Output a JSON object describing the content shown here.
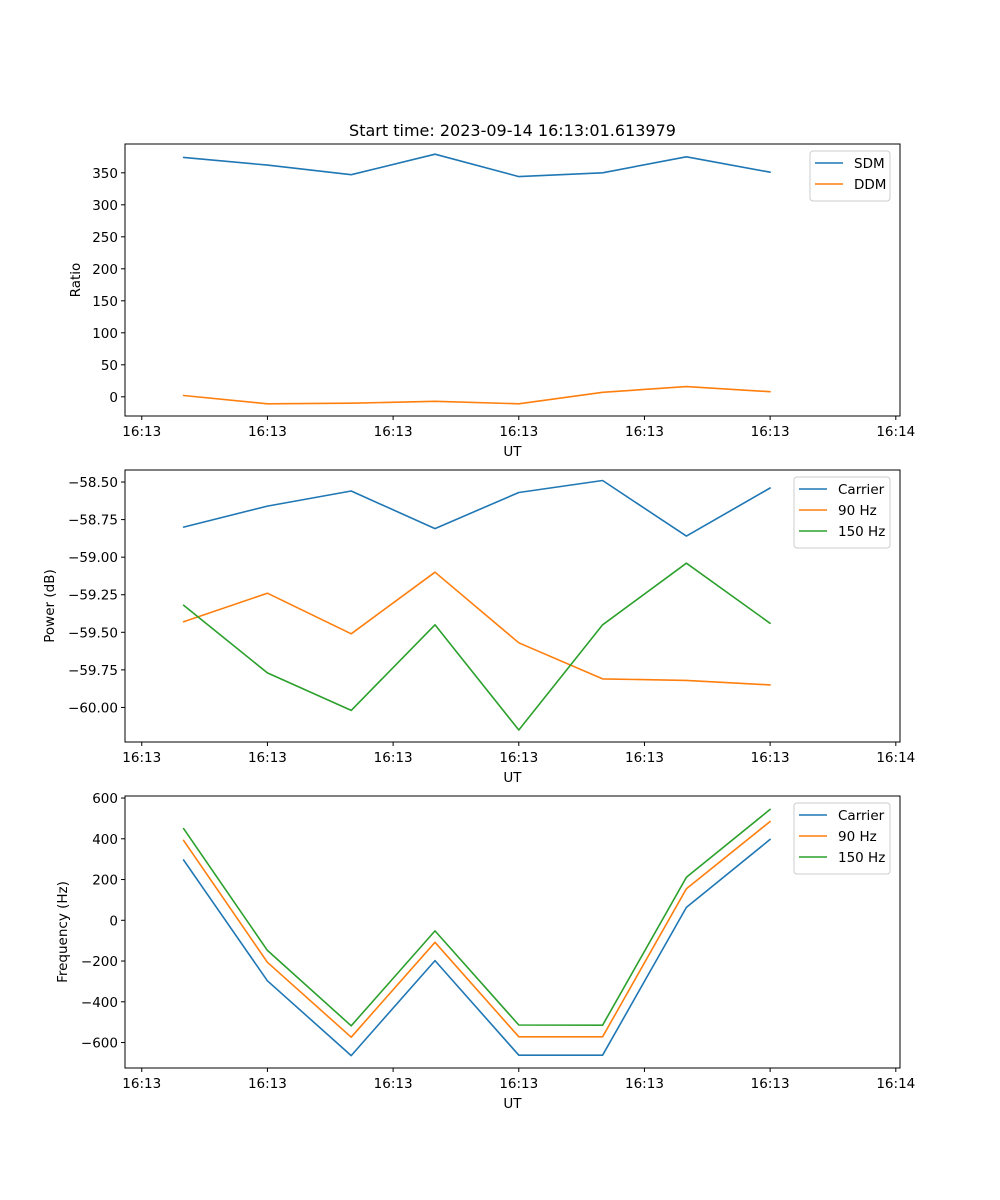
{
  "figure": {
    "title": "Start time: 2023-09-14 16:13:01.613979"
  },
  "colors": {
    "blue": "#1f77b4",
    "orange": "#ff7f0e",
    "green": "#2ca02c"
  },
  "chart_data": [
    {
      "type": "line",
      "title": "Start time: 2023-09-14 16:13:01.613979",
      "xlabel": "UT",
      "ylabel": "Ratio",
      "x": [
        1,
        2,
        3,
        4,
        5,
        6,
        7,
        8
      ],
      "xlim": [
        0.3,
        9.55
      ],
      "x_ticks": [
        0.5,
        2.0,
        3.5,
        5.0,
        6.5,
        8.0,
        9.5
      ],
      "x_tick_labels": [
        "16:13",
        "16:13",
        "16:13",
        "16:13",
        "16:13",
        "16:13",
        "16:14"
      ],
      "ylim": [
        -30,
        395
      ],
      "y_ticks": [
        0,
        50,
        100,
        150,
        200,
        250,
        300,
        350
      ],
      "y_tick_labels": [
        "0",
        "50",
        "100",
        "150",
        "200",
        "250",
        "300",
        "350"
      ],
      "legend": "top-right",
      "series": [
        {
          "name": "SDM",
          "color": "#1f77b4",
          "values": [
            374,
            362,
            347,
            379,
            344,
            350,
            375,
            351
          ]
        },
        {
          "name": "DDM",
          "color": "#ff7f0e",
          "values": [
            2,
            -11,
            -10,
            -7,
            -11,
            7,
            16,
            8
          ]
        }
      ]
    },
    {
      "type": "line",
      "title": "",
      "xlabel": "UT",
      "ylabel": "Power (dB)",
      "x": [
        1,
        2,
        3,
        4,
        5,
        6,
        7,
        8
      ],
      "xlim": [
        0.3,
        9.55
      ],
      "x_ticks": [
        0.5,
        2.0,
        3.5,
        5.0,
        6.5,
        8.0,
        9.5
      ],
      "x_tick_labels": [
        "16:13",
        "16:13",
        "16:13",
        "16:13",
        "16:13",
        "16:13",
        "16:14"
      ],
      "ylim": [
        -60.23,
        -58.42
      ],
      "y_ticks": [
        -60.0,
        -59.75,
        -59.5,
        -59.25,
        -59.0,
        -58.75,
        -58.5
      ],
      "y_tick_labels": [
        "−60.00",
        "−59.75",
        "−59.50",
        "−59.25",
        "−59.00",
        "−58.75",
        "−58.50"
      ],
      "legend": "top-right",
      "series": [
        {
          "name": "Carrier",
          "color": "#1f77b4",
          "values": [
            -58.8,
            -58.66,
            -58.56,
            -58.81,
            -58.57,
            -58.49,
            -58.86,
            -58.54
          ]
        },
        {
          "name": "90 Hz",
          "color": "#ff7f0e",
          "values": [
            -59.43,
            -59.24,
            -59.51,
            -59.1,
            -59.57,
            -59.81,
            -59.82,
            -59.85
          ]
        },
        {
          "name": "150 Hz",
          "color": "#2ca02c",
          "values": [
            -59.32,
            -59.77,
            -60.02,
            -59.45,
            -60.15,
            -59.45,
            -59.04,
            -59.44
          ]
        }
      ]
    },
    {
      "type": "line",
      "title": "",
      "xlabel": "UT",
      "ylabel": "Frequency (Hz)",
      "x": [
        1,
        2,
        3,
        4,
        5,
        6,
        7,
        8
      ],
      "xlim": [
        0.3,
        9.55
      ],
      "x_ticks": [
        0.5,
        2.0,
        3.5,
        5.0,
        6.5,
        8.0,
        9.5
      ],
      "x_tick_labels": [
        "16:13",
        "16:13",
        "16:13",
        "16:13",
        "16:13",
        "16:13",
        "16:14"
      ],
      "ylim": [
        -725,
        610
      ],
      "y_ticks": [
        -600,
        -400,
        -200,
        0,
        200,
        400,
        600
      ],
      "y_tick_labels": [
        "−600",
        "−400",
        "−200",
        "0",
        "200",
        "400",
        "600"
      ],
      "legend": "top-right",
      "series": [
        {
          "name": "Carrier",
          "color": "#1f77b4",
          "values": [
            296,
            -297,
            -664,
            -198,
            -662,
            -662,
            63,
            397
          ]
        },
        {
          "name": "90 Hz",
          "color": "#ff7f0e",
          "values": [
            392,
            -206,
            -574,
            -108,
            -572,
            -572,
            155,
            485
          ]
        },
        {
          "name": "150 Hz",
          "color": "#2ca02c",
          "values": [
            450,
            -148,
            -518,
            -52,
            -514,
            -515,
            211,
            544
          ]
        }
      ]
    }
  ]
}
